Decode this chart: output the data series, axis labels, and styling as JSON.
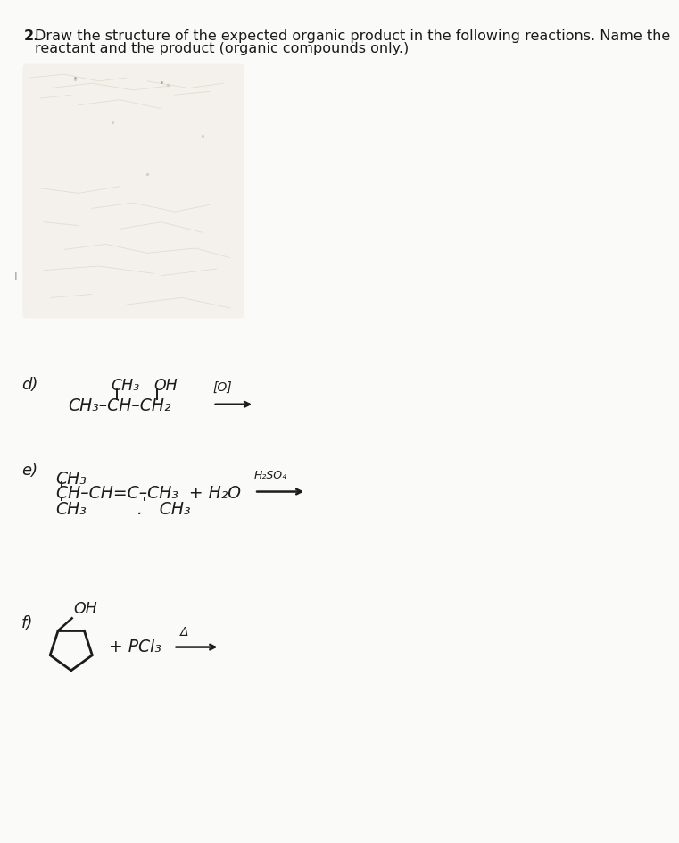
{
  "bg_color": "#fafaf8",
  "text_color": "#1a1a1a",
  "hw_color": "#1c1c1c",
  "title_line1": "2.   Draw the structure of the expected organic product in the following reactions. Name the",
  "title_line2": "      reactant and the product (organic compounds only.)",
  "label_d": "d)",
  "label_e": "e)",
  "label_f": "f)",
  "scan_faded_color": "#e8e2d8",
  "scan_bg_color": "#f0ece4"
}
